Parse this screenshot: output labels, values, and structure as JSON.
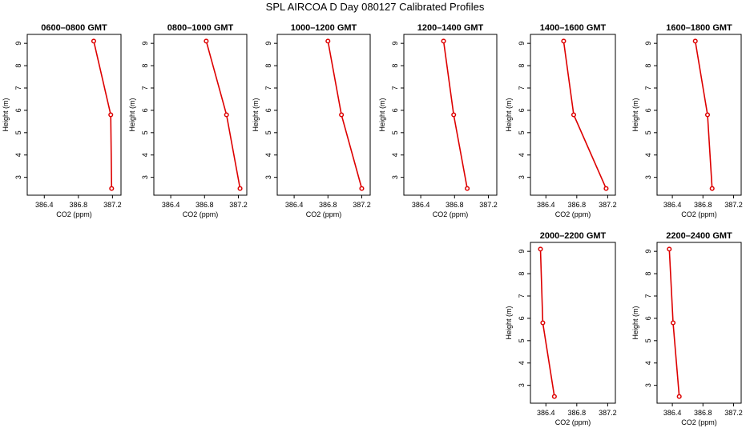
{
  "figure_title": "SPL AIRCOA D  Day 080127  Calibrated Profiles",
  "colors": {
    "line": "#dd0000",
    "axis": "#000000"
  },
  "chart_data": [
    {
      "type": "line",
      "title": "0600–0800 GMT",
      "xlabel": "CO2 (ppm)",
      "ylabel": "Height (m)",
      "xlim": [
        386.2,
        387.3
      ],
      "ylim": [
        2.2,
        9.4
      ],
      "xticks": [
        "386.4",
        "386.8",
        "387.2"
      ],
      "yticks": [
        "3",
        "4",
        "5",
        "6",
        "7",
        "8",
        "9"
      ],
      "grid": false,
      "series": [
        {
          "x": [
            386.98,
            387.18,
            387.19
          ],
          "y": [
            9.1,
            5.8,
            2.5
          ]
        }
      ]
    },
    {
      "type": "line",
      "title": "0800–1000 GMT",
      "xlabel": "CO2 (ppm)",
      "ylabel": "Height (m)",
      "xlim": [
        386.2,
        387.3
      ],
      "ylim": [
        2.2,
        9.4
      ],
      "xticks": [
        "386.4",
        "386.8",
        "387.2"
      ],
      "yticks": [
        "3",
        "4",
        "5",
        "6",
        "7",
        "8",
        "9"
      ],
      "grid": false,
      "series": [
        {
          "x": [
            386.82,
            387.06,
            387.22
          ],
          "y": [
            9.1,
            5.8,
            2.5
          ]
        }
      ]
    },
    {
      "type": "line",
      "title": "1000–1200 GMT",
      "xlabel": "CO2 (ppm)",
      "ylabel": "Height (m)",
      "xlim": [
        386.2,
        387.3
      ],
      "ylim": [
        2.2,
        9.4
      ],
      "xticks": [
        "386.4",
        "386.8",
        "387.2"
      ],
      "yticks": [
        "3",
        "4",
        "5",
        "6",
        "7",
        "8",
        "9"
      ],
      "grid": false,
      "series": [
        {
          "x": [
            386.8,
            386.96,
            387.2
          ],
          "y": [
            9.1,
            5.8,
            2.5
          ]
        }
      ]
    },
    {
      "type": "line",
      "title": "1200–1400 GMT",
      "xlabel": "CO2 (ppm)",
      "ylabel": "Height (m)",
      "xlim": [
        386.2,
        387.3
      ],
      "ylim": [
        2.2,
        9.4
      ],
      "xticks": [
        "386.4",
        "386.8",
        "387.2"
      ],
      "yticks": [
        "3",
        "4",
        "5",
        "6",
        "7",
        "8",
        "9"
      ],
      "grid": false,
      "series": [
        {
          "x": [
            386.67,
            386.79,
            386.95
          ],
          "y": [
            9.1,
            5.8,
            2.5
          ]
        }
      ]
    },
    {
      "type": "line",
      "title": "1400–1600 GMT",
      "xlabel": "CO2 (ppm)",
      "ylabel": "Height (m)",
      "xlim": [
        386.2,
        387.3
      ],
      "ylim": [
        2.2,
        9.4
      ],
      "xticks": [
        "386.4",
        "386.8",
        "387.2"
      ],
      "yticks": [
        "3",
        "4",
        "5",
        "6",
        "7",
        "8",
        "9"
      ],
      "grid": false,
      "series": [
        {
          "x": [
            386.63,
            386.76,
            387.18
          ],
          "y": [
            9.1,
            5.8,
            2.5
          ]
        }
      ]
    },
    {
      "type": "line",
      "title": "1600–1800 GMT",
      "xlabel": "CO2 (ppm)",
      "ylabel": "Height (m)",
      "xlim": [
        386.2,
        387.3
      ],
      "ylim": [
        2.2,
        9.4
      ],
      "xticks": [
        "386.4",
        "386.8",
        "387.2"
      ],
      "yticks": [
        "3",
        "4",
        "5",
        "6",
        "7",
        "8",
        "9"
      ],
      "grid": false,
      "series": [
        {
          "x": [
            386.7,
            386.86,
            386.92
          ],
          "y": [
            9.1,
            5.8,
            2.5
          ]
        }
      ]
    },
    {
      "type": "line",
      "title": "2000–2200 GMT",
      "xlabel": "CO2 (ppm)",
      "ylabel": "Height (m)",
      "xlim": [
        386.2,
        387.3
      ],
      "ylim": [
        2.2,
        9.4
      ],
      "xticks": [
        "386.4",
        "386.8",
        "387.2"
      ],
      "yticks": [
        "3",
        "4",
        "5",
        "6",
        "7",
        "8",
        "9"
      ],
      "grid": false,
      "series": [
        {
          "x": [
            386.33,
            386.36,
            386.51
          ],
          "y": [
            9.1,
            5.8,
            2.5
          ]
        }
      ]
    },
    {
      "type": "line",
      "title": "2200–2400 GMT",
      "xlabel": "CO2 (ppm)",
      "ylabel": "Height (m)",
      "xlim": [
        386.2,
        387.3
      ],
      "ylim": [
        2.2,
        9.4
      ],
      "xticks": [
        "386.4",
        "386.8",
        "387.2"
      ],
      "yticks": [
        "3",
        "4",
        "5",
        "6",
        "7",
        "8",
        "9"
      ],
      "grid": false,
      "series": [
        {
          "x": [
            386.36,
            386.41,
            386.49
          ],
          "y": [
            9.1,
            5.8,
            2.5
          ]
        }
      ]
    }
  ]
}
